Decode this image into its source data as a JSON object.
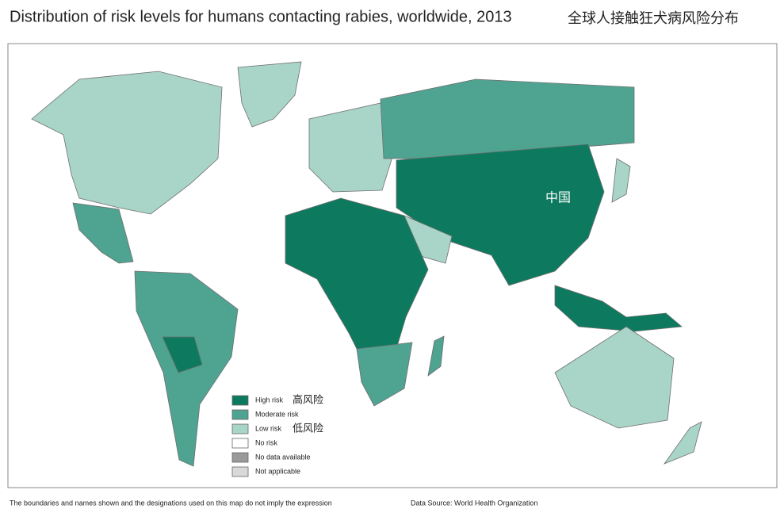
{
  "title": "Distribution of risk levels for humans contacting rabies, worldwide, 2013",
  "title_zh": "全球人接触狂犬病风险分布",
  "map_label": "中国",
  "legend": [
    {
      "label": "High risk",
      "label_zh": "高风险",
      "color": "#0d7a5f"
    },
    {
      "label": "Moderate risk",
      "color": "#4fa391"
    },
    {
      "label": "Low risk",
      "label_zh": "低风险",
      "color": "#a9d4c8"
    },
    {
      "label": "No risk",
      "color": "#ffffff"
    },
    {
      "label": "No data available",
      "color": "#9a9a9a"
    },
    {
      "label": "Not applicable",
      "color": "#d9d9d9"
    }
  ],
  "footer": {
    "disclaimer": "The boundaries and names shown and the designations used on this map do not imply the expression",
    "source": "Data Source: World Health Organization"
  }
}
